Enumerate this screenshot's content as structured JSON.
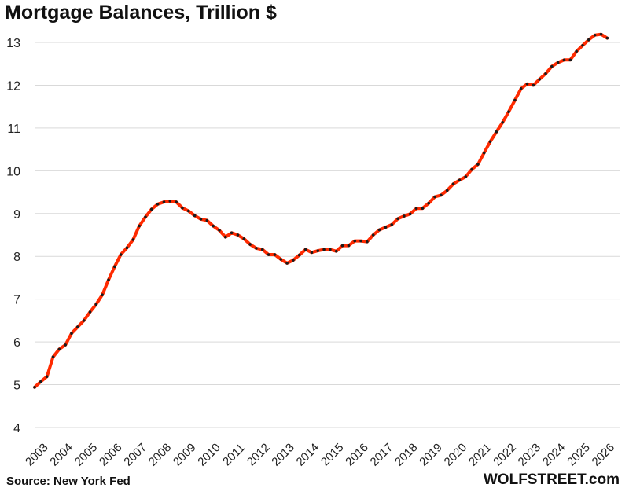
{
  "chart_data": {
    "type": "line",
    "title": "Mortgage Balances, Trillion $",
    "xlabel": "",
    "ylabel": "",
    "ylim": [
      4,
      13
    ],
    "yticks": [
      4,
      5,
      6,
      7,
      8,
      9,
      10,
      11,
      12,
      13
    ],
    "xticks": [
      "2003",
      "2004",
      "2005",
      "2006",
      "2007",
      "2008",
      "2009",
      "2010",
      "2011",
      "2012",
      "2013",
      "2014",
      "2015",
      "2016",
      "2017",
      "2018",
      "2019",
      "2020",
      "2021",
      "2022",
      "2023",
      "2024",
      "2025",
      "2026"
    ],
    "x_start_year": 2003,
    "points_per_year": 4,
    "grid": "horizontal",
    "legend": "none",
    "line_color": "#ff2a00",
    "marker_color": "#1a1a1a",
    "series": [
      {
        "values": [
          4.94,
          5.07,
          5.19,
          5.65,
          5.83,
          5.93,
          6.2,
          6.35,
          6.5,
          6.7,
          6.88,
          7.1,
          7.45,
          7.76,
          8.04,
          8.2,
          8.39,
          8.71,
          8.92,
          9.1,
          9.22,
          9.27,
          9.29,
          9.27,
          9.13,
          9.06,
          8.95,
          8.87,
          8.84,
          8.71,
          8.61,
          8.45,
          8.55,
          8.5,
          8.41,
          8.28,
          8.19,
          8.16,
          8.04,
          8.04,
          7.93,
          7.84,
          7.91,
          8.03,
          8.16,
          8.09,
          8.13,
          8.16,
          8.16,
          8.12,
          8.25,
          8.25,
          8.36,
          8.36,
          8.34,
          8.5,
          8.62,
          8.68,
          8.74,
          8.88,
          8.94,
          8.99,
          9.12,
          9.12,
          9.24,
          9.39,
          9.43,
          9.54,
          9.69,
          9.78,
          9.86,
          10.03,
          10.15,
          10.42,
          10.68,
          10.91,
          11.13,
          11.38,
          11.65,
          11.92,
          12.03,
          12.0,
          12.14,
          12.27,
          12.44,
          12.53,
          12.59,
          12.59,
          12.79,
          12.93,
          13.06,
          13.17,
          13.19,
          13.1
        ]
      }
    ]
  },
  "footer": {
    "source": "Source: New York Fed",
    "brand": "WOLFSTREET.com"
  }
}
